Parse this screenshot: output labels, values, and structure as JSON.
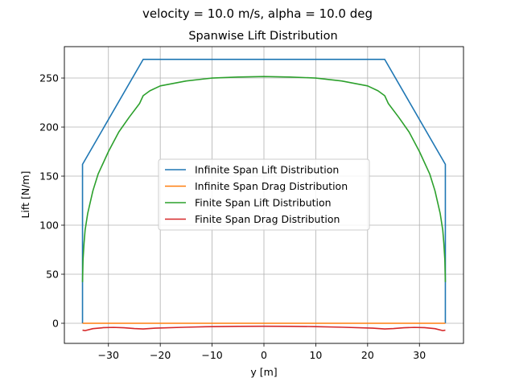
{
  "chart_data": {
    "type": "line",
    "suptitle": "velocity = 10.0 m/s, alpha = 10.0 deg",
    "title": "Spanwise Lift Distribution",
    "xlabel": "y [m]",
    "ylabel": "Lift [N/m]",
    "xlim": [
      -38.5,
      38.5
    ],
    "ylim": [
      -20.5,
      282
    ],
    "xticks": [
      -30,
      -20,
      -10,
      0,
      10,
      20,
      30
    ],
    "xtick_labels": [
      "−30",
      "−20",
      "−10",
      "0",
      "10",
      "20",
      "30"
    ],
    "yticks": [
      0,
      50,
      100,
      150,
      200,
      250
    ],
    "ytick_labels": [
      "0",
      "50",
      "100",
      "150",
      "200",
      "250"
    ],
    "grid": true,
    "legend_position": "center",
    "series": [
      {
        "name": "Infinite Span Lift Distribution",
        "color": "#1f77b4",
        "x": [
          -35,
          -35,
          -23.3,
          23.3,
          35,
          35
        ],
        "y": [
          0,
          162,
          269,
          269,
          162,
          0
        ]
      },
      {
        "name": "Infinite Span Drag Distribution",
        "color": "#ff7f0e",
        "x": [
          -35,
          35
        ],
        "y": [
          0,
          0
        ]
      },
      {
        "name": "Finite Span Lift Distribution",
        "color": "#2ca02c",
        "x": [
          -35,
          -34.9,
          -34.7,
          -34.5,
          -34,
          -33,
          -32,
          -30,
          -28,
          -26,
          -24,
          -23.3,
          -22,
          -20,
          -15,
          -10,
          -5,
          0,
          5,
          10,
          15,
          20,
          22,
          23.3,
          24,
          26,
          28,
          30,
          32,
          33,
          34,
          34.5,
          34.7,
          34.9,
          35
        ],
        "y": [
          42,
          65,
          82,
          95,
          112,
          135,
          152,
          175,
          195,
          210,
          224,
          232,
          237,
          242,
          247,
          250,
          251,
          251.5,
          251,
          250,
          247,
          242,
          237,
          232,
          224,
          210,
          195,
          175,
          152,
          135,
          112,
          95,
          82,
          65,
          42
        ]
      },
      {
        "name": "Finite Span Drag Distribution",
        "color": "#d62728",
        "x": [
          -35,
          -34.5,
          -33,
          -31,
          -29,
          -27,
          -25,
          -23.3,
          -21,
          -15,
          -10,
          -5,
          0,
          5,
          10,
          15,
          21,
          23.3,
          25,
          27,
          29,
          31,
          33,
          34.5,
          35
        ],
        "y": [
          -7,
          -7.5,
          -5.5,
          -4.5,
          -4.2,
          -4.6,
          -5.4,
          -5.8,
          -5,
          -4,
          -3.4,
          -3.1,
          -3,
          -3.1,
          -3.4,
          -4,
          -5,
          -5.8,
          -5.4,
          -4.6,
          -4.2,
          -4.5,
          -5.5,
          -7.5,
          -7
        ]
      }
    ]
  }
}
